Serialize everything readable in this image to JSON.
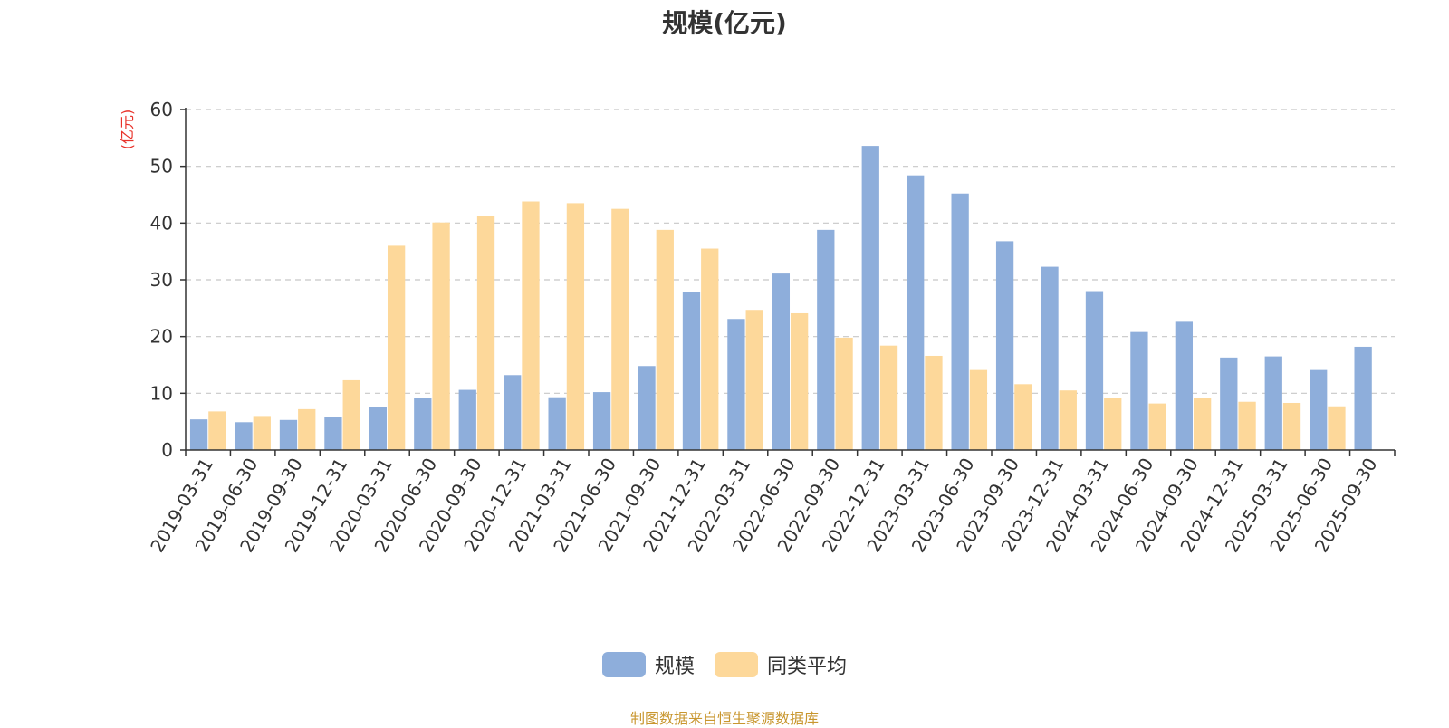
{
  "chart_data": {
    "type": "bar",
    "title": "规模(亿元)",
    "ylabel": "(亿元)",
    "ylim": [
      0,
      60
    ],
    "yticks": [
      0,
      10,
      20,
      30,
      40,
      50,
      60
    ],
    "grid": true,
    "legend_position": "bottom",
    "categories": [
      "2019-03-31",
      "2019-06-30",
      "2019-09-30",
      "2019-12-31",
      "2020-03-31",
      "2020-06-30",
      "2020-09-30",
      "2020-12-31",
      "2021-03-31",
      "2021-06-30",
      "2021-09-30",
      "2021-12-31",
      "2022-03-31",
      "2022-06-30",
      "2022-09-30",
      "2022-12-31",
      "2023-03-31",
      "2023-06-30",
      "2023-09-30",
      "2023-12-31",
      "2024-03-31",
      "2024-06-30",
      "2024-09-30",
      "2024-12-31",
      "2025-03-31",
      "2025-06-30",
      "2025-09-30"
    ],
    "series": [
      {
        "name": "规模",
        "color": "#8eaedb",
        "values": [
          5.4,
          4.9,
          5.3,
          5.8,
          7.5,
          9.2,
          10.6,
          13.2,
          9.3,
          10.2,
          14.8,
          27.9,
          23.1,
          31.1,
          38.8,
          53.6,
          48.4,
          45.2,
          36.8,
          32.3,
          28.0,
          20.8,
          22.6,
          16.3,
          16.5,
          14.1,
          18.2
        ]
      },
      {
        "name": "同类平均",
        "color": "#fdd89a",
        "values": [
          6.8,
          6.0,
          7.2,
          12.3,
          36.0,
          40.1,
          41.3,
          43.8,
          43.5,
          42.5,
          38.8,
          35.5,
          24.7,
          24.1,
          19.8,
          18.4,
          16.6,
          14.1,
          11.6,
          10.5,
          9.2,
          8.2,
          9.2,
          8.5,
          8.3,
          7.7,
          null
        ]
      }
    ]
  },
  "unit_color": "#e8322a",
  "footer": {
    "source": "制图数据来自恒生聚源数据库",
    "color": "#c8962e"
  }
}
